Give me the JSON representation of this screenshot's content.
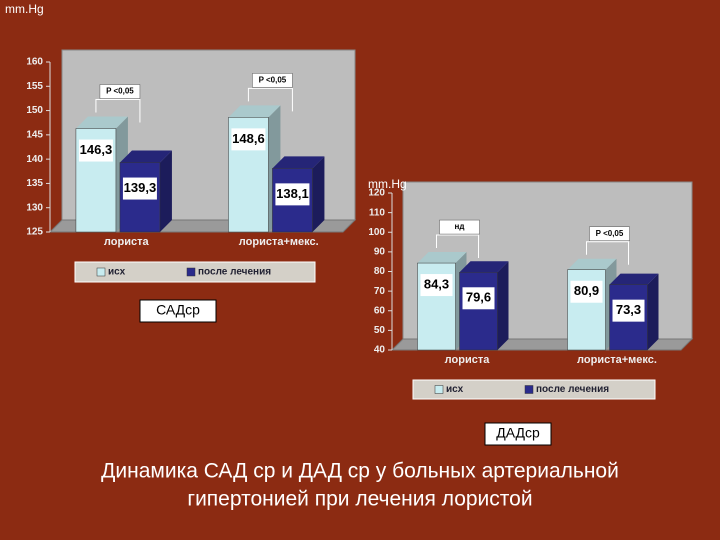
{
  "chart_data": [
    {
      "type": "bar3d",
      "title": "САДср",
      "y_label": "mm.Hg",
      "categories": [
        "лориста",
        "лориста+мекс."
      ],
      "series": [
        {
          "name": "исх",
          "color": "#c8ecf0",
          "values": [
            146.3,
            148.6
          ],
          "value_labels": [
            "146,3",
            "148,6"
          ]
        },
        {
          "name": "после лечения",
          "color": "#2b2b8c",
          "values": [
            139.3,
            138.1
          ],
          "value_labels": [
            "139,3",
            "138,1"
          ]
        }
      ],
      "annotations": [
        "P <0,05",
        "P <0,05"
      ],
      "ylim": [
        125,
        160
      ],
      "yticks": [
        125,
        130,
        135,
        140,
        145,
        150,
        155,
        160
      ],
      "grid": false
    },
    {
      "type": "bar3d",
      "title": "ДАДср",
      "y_label": "mm.Hg",
      "categories": [
        "лориста",
        "лориста+мекс."
      ],
      "series": [
        {
          "name": "исх",
          "color": "#c8ecf0",
          "values": [
            84.3,
            80.9
          ],
          "value_labels": [
            "84,3",
            "80,9"
          ]
        },
        {
          "name": "после лечения",
          "color": "#2b2b8c",
          "values": [
            79.6,
            73.3
          ],
          "value_labels": [
            "79,6",
            "73,3"
          ]
        }
      ],
      "annotations": [
        "нд",
        "P <0,05"
      ],
      "ylim": [
        40,
        120
      ],
      "yticks": [
        40,
        50,
        60,
        70,
        80,
        90,
        100,
        110,
        120
      ],
      "grid": false
    }
  ],
  "caption": [
    "Динамика САД ср  и ДАД ср у больных артериальной",
    "гипертонией при лечения лористой"
  ]
}
